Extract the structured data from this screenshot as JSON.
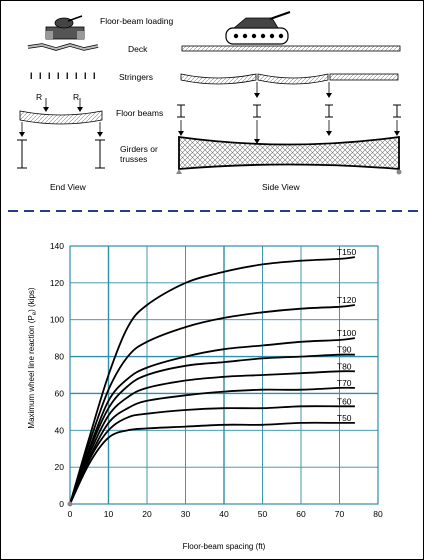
{
  "diagram": {
    "labels": {
      "floor_beam_loading": "Floor-beam loading",
      "deck": "Deck",
      "stringers": "Stringers",
      "floor_beams": "Floor beams",
      "girders_or_trusses": "Girders or\ntrusses",
      "end_view": "End View",
      "side_view": "Side View",
      "reaction_left": "R",
      "reaction_right": "R"
    },
    "colors": {
      "divider": "#1f3f8f",
      "hatch": "#888888"
    }
  },
  "chart_data": {
    "type": "line",
    "xlabel": "Floor-beam spacing (ft)",
    "ylabel": "Maximum wheel line reaction (P",
    "ylabel_sub": "e",
    "ylabel_end": ") (kips)",
    "xlim": [
      0,
      80
    ],
    "ylim": [
      0,
      140
    ],
    "xticks": [
      0,
      10,
      20,
      30,
      40,
      50,
      60,
      70,
      80
    ],
    "yticks": [
      0,
      20,
      40,
      60,
      80,
      100,
      120,
      140
    ],
    "grid": true,
    "grid_color": "#2e8fa6",
    "series": [
      {
        "name": "T150",
        "x": [
          0,
          5,
          10,
          15,
          20,
          30,
          40,
          50,
          60,
          70,
          74
        ],
        "y": [
          0,
          36,
          70,
          96,
          108,
          120,
          126,
          130,
          132,
          133,
          134
        ]
      },
      {
        "name": "T120",
        "x": [
          0,
          5,
          10,
          15,
          20,
          30,
          40,
          50,
          60,
          70,
          74
        ],
        "y": [
          0,
          33,
          62,
          80,
          88,
          96,
          101,
          104,
          106,
          107,
          108
        ]
      },
      {
        "name": "T100",
        "x": [
          0,
          5,
          10,
          15,
          20,
          30,
          40,
          50,
          60,
          70,
          74
        ],
        "y": [
          0,
          30,
          56,
          68,
          74,
          80,
          84,
          86,
          88,
          89,
          90
        ]
      },
      {
        "name": "T90",
        "x": [
          0,
          5,
          10,
          15,
          20,
          30,
          40,
          50,
          60,
          70,
          74
        ],
        "y": [
          0,
          29,
          52,
          64,
          70,
          75,
          77,
          79,
          80,
          81,
          81
        ]
      },
      {
        "name": "T80",
        "x": [
          0,
          5,
          10,
          15,
          20,
          30,
          40,
          50,
          60,
          70,
          74
        ],
        "y": [
          0,
          27,
          48,
          58,
          63,
          67,
          69,
          70,
          71,
          72,
          72
        ]
      },
      {
        "name": "T70",
        "x": [
          0,
          5,
          10,
          15,
          20,
          30,
          40,
          50,
          60,
          70,
          74
        ],
        "y": [
          0,
          25,
          44,
          52,
          56,
          59,
          61,
          62,
          62,
          63,
          63
        ]
      },
      {
        "name": "T60",
        "x": [
          0,
          5,
          10,
          15,
          20,
          30,
          40,
          50,
          60,
          70,
          74
        ],
        "y": [
          0,
          24,
          40,
          47,
          49,
          51,
          52,
          52,
          53,
          53,
          53
        ]
      },
      {
        "name": "T50",
        "x": [
          0,
          5,
          10,
          15,
          20,
          30,
          40,
          50,
          60,
          70,
          74
        ],
        "y": [
          0,
          22,
          36,
          40,
          41,
          42,
          43,
          43,
          44,
          44,
          44
        ]
      }
    ]
  }
}
